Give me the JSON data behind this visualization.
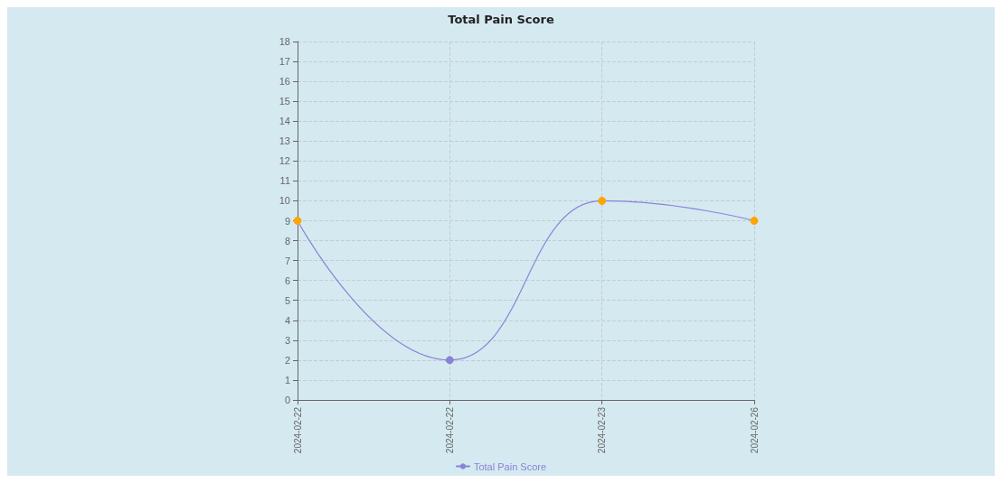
{
  "chart_data": {
    "type": "line",
    "title": "Total Pain Score",
    "categories": [
      "2024-02-22",
      "2024-02-22",
      "2024-02-23",
      "2024-02-26"
    ],
    "series": [
      {
        "name": "Total Pain Score",
        "color": "#8884d8",
        "values": [
          9,
          2,
          10,
          9
        ],
        "colors": [
          "#ffa500",
          "#8884d8",
          "#ffa500",
          "#ffa500"
        ]
      }
    ],
    "ylim": [
      0,
      18
    ],
    "yticks": [
      0,
      1,
      2,
      3,
      4,
      5,
      6,
      7,
      8,
      9,
      10,
      11,
      12,
      13,
      14,
      15,
      16,
      17,
      18
    ],
    "grid": true,
    "legend": "bottom",
    "marker": "circle",
    "line_style": "solid"
  }
}
